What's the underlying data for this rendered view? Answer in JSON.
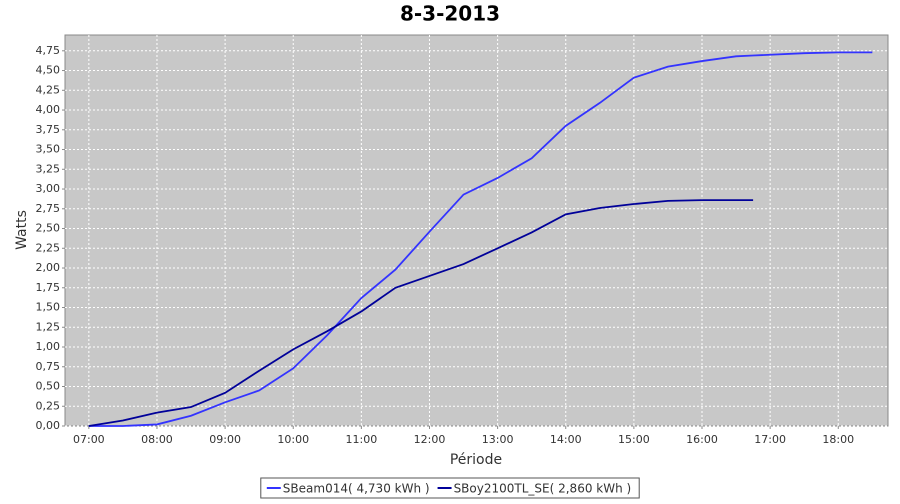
{
  "chart_data": {
    "type": "line",
    "title": "8-3-2013",
    "x_label": "Période",
    "y_label": "Watts",
    "x": [
      7,
      7.5,
      8,
      8.5,
      9,
      9.5,
      10,
      10.5,
      11,
      11.5,
      12,
      12.5,
      13,
      13.5,
      14,
      14.5,
      15,
      15.5,
      16,
      16.5,
      16.75,
      17,
      17.5,
      18,
      18.5
    ],
    "series": [
      {
        "name": "SBeam014( 4,730 kWh )",
        "color": "#3333ff",
        "values": [
          0,
          0,
          0.02,
          0.13,
          0.3,
          0.45,
          0.73,
          1.15,
          1.62,
          1.98,
          2.46,
          2.93,
          3.14,
          3.39,
          3.8,
          4.09,
          4.41,
          4.55,
          4.62,
          4.68,
          4.69,
          4.7,
          4.72,
          4.73,
          4.73
        ]
      },
      {
        "name": "SBoy2100TL_SE( 2,860 kWh )",
        "color": "#000099",
        "values": [
          0,
          0.07,
          0.17,
          0.24,
          0.42,
          0.7,
          0.97,
          1.2,
          1.45,
          1.75,
          1.9,
          2.05,
          2.25,
          2.45,
          2.68,
          2.76,
          2.81,
          2.85,
          2.86,
          2.86,
          2.86,
          null,
          null,
          null,
          null
        ]
      }
    ],
    "xlim": [
      6.65,
      18.73
    ],
    "xticks": [
      {
        "value": 7,
        "label": "07:00"
      },
      {
        "value": 8,
        "label": "08:00"
      },
      {
        "value": 9,
        "label": "09:00"
      },
      {
        "value": 10,
        "label": "10:00"
      },
      {
        "value": 11,
        "label": "11:00"
      },
      {
        "value": 12,
        "label": "12:00"
      },
      {
        "value": 13,
        "label": "13:00"
      },
      {
        "value": 14,
        "label": "14:00"
      },
      {
        "value": 15,
        "label": "15:00"
      },
      {
        "value": 16,
        "label": "16:00"
      },
      {
        "value": 17,
        "label": "17:00"
      },
      {
        "value": 18,
        "label": "18:00"
      }
    ],
    "ylim": [
      0,
      4.95
    ],
    "yticks": [
      {
        "value": 0,
        "label": "0,00"
      },
      {
        "value": 0.25,
        "label": "0,25"
      },
      {
        "value": 0.5,
        "label": "0,50"
      },
      {
        "value": 0.75,
        "label": "0,75"
      },
      {
        "value": 1,
        "label": "1,00"
      },
      {
        "value": 1.25,
        "label": "1,25"
      },
      {
        "value": 1.5,
        "label": "1,50"
      },
      {
        "value": 1.75,
        "label": "1,75"
      },
      {
        "value": 2,
        "label": "2,00"
      },
      {
        "value": 2.25,
        "label": "2,25"
      },
      {
        "value": 2.5,
        "label": "2,50"
      },
      {
        "value": 2.75,
        "label": "2,75"
      },
      {
        "value": 3,
        "label": "3,00"
      },
      {
        "value": 3.25,
        "label": "3,25"
      },
      {
        "value": 3.5,
        "label": "3,50"
      },
      {
        "value": 3.75,
        "label": "3,75"
      },
      {
        "value": 4,
        "label": "4,00"
      },
      {
        "value": 4.25,
        "label": "4,25"
      },
      {
        "value": 4.5,
        "label": "4,50"
      },
      {
        "value": 4.75,
        "label": "4,75"
      }
    ],
    "grid": true
  }
}
